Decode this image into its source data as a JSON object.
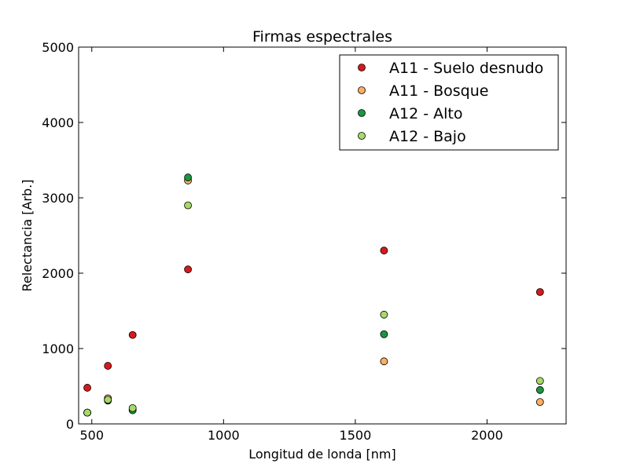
{
  "chart_data": {
    "type": "scatter",
    "title": "Firmas espectrales",
    "xlabel": "Longitud de londa [nm]",
    "ylabel": "Relectancia [Arb.]",
    "xlim": [
      450,
      2300
    ],
    "ylim": [
      0,
      5000
    ],
    "xticks": [
      500,
      1000,
      1500,
      2000
    ],
    "yticks": [
      0,
      1000,
      2000,
      3000,
      4000,
      5000
    ],
    "grid": false,
    "legend_position": "top-right",
    "x": [
      483,
      561,
      655,
      865,
      1609,
      2201
    ],
    "series": [
      {
        "name": "A11 - Suelo desnudo",
        "color": "#d7191c",
        "values": [
          480,
          770,
          1180,
          2050,
          2300,
          1750
        ]
      },
      {
        "name": "A11 - Bosque",
        "color": "#fdae61",
        "values": [
          150,
          340,
          190,
          3230,
          830,
          290
        ]
      },
      {
        "name": "A12 - Alto",
        "color": "#1a9641",
        "values": [
          150,
          310,
          180,
          3270,
          1190,
          450
        ]
      },
      {
        "name": "A12 - Bajo",
        "color": "#a6d96a",
        "values": [
          150,
          320,
          210,
          2900,
          1450,
          570
        ]
      }
    ]
  }
}
